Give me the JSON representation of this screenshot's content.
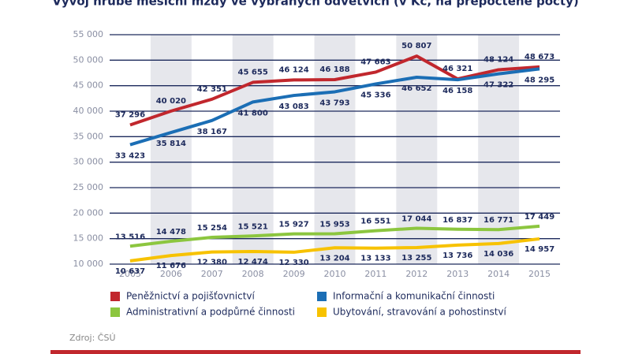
{
  "chart_data": {
    "type": "line",
    "title": "Vývoj hrubé měsíční mzdy ve vybraných odvětvích (v Kč, na přepočtené počty)",
    "categories": [
      "2005",
      "2006",
      "2007",
      "2008",
      "2009",
      "2010",
      "2011",
      "2012",
      "2013",
      "2014",
      "2015"
    ],
    "ylim": [
      10000,
      55000
    ],
    "yticks": [
      {
        "value": 10000,
        "label": "10 000"
      },
      {
        "value": 15000,
        "label": "15 000"
      },
      {
        "value": 20000,
        "label": "20 000"
      },
      {
        "value": 25000,
        "label": "25 000"
      },
      {
        "value": 30000,
        "label": "30 000"
      },
      {
        "value": 35000,
        "label": "35 000"
      },
      {
        "value": 40000,
        "label": "40 000"
      },
      {
        "value": 45000,
        "label": "45 000"
      },
      {
        "value": 50000,
        "label": "50 000"
      },
      {
        "value": 55000,
        "label": "55 000"
      }
    ],
    "grid": true,
    "series": [
      {
        "name": "Peněžnictví a pojišťovnictví",
        "color": "#c1272d",
        "values": [
          37296,
          40020,
          42351,
          45655,
          46124,
          46188,
          47663,
          50807,
          46321,
          48124,
          48673
        ],
        "value_labels": [
          "37 296",
          "40 020",
          "42 351",
          "45 655",
          "46 124",
          "46 188",
          "47 663",
          "50 807",
          "46 321",
          "48 124",
          "48 673"
        ]
      },
      {
        "name": "Informační a komunikační činnosti",
        "color": "#1b6eb5",
        "values": [
          33423,
          35814,
          38167,
          41800,
          43083,
          43793,
          45336,
          46652,
          46158,
          47322,
          48295
        ],
        "value_labels": [
          "33 423",
          "35 814",
          "38 167",
          "41 800",
          "43 083",
          "43 793",
          "45 336",
          "46 652",
          "46 158",
          "47 322",
          "48 295"
        ]
      },
      {
        "name": "Administrativní a podpůrné činnosti",
        "color": "#8cc63f",
        "values": [
          13516,
          14478,
          15254,
          15521,
          15927,
          15953,
          16551,
          17044,
          16837,
          16771,
          17449
        ],
        "value_labels": [
          "13 516",
          "14 478",
          "15 254",
          "15 521",
          "15 927",
          "15 953",
          "16 551",
          "17 044",
          "16 837",
          "16 771",
          "17 449"
        ]
      },
      {
        "name": "Ubytování, stravování a pohostinství",
        "color": "#f7c200",
        "values": [
          10637,
          11676,
          12380,
          12474,
          12330,
          13204,
          13133,
          13255,
          13736,
          14036,
          14957
        ],
        "value_labels": [
          "10 637",
          "11 676",
          "12 380",
          "12 474",
          "12 330",
          "13 204",
          "13 133",
          "13 255",
          "13 736",
          "14 036",
          "14 957"
        ]
      }
    ],
    "source": "Zdroj: ČSÚ"
  }
}
